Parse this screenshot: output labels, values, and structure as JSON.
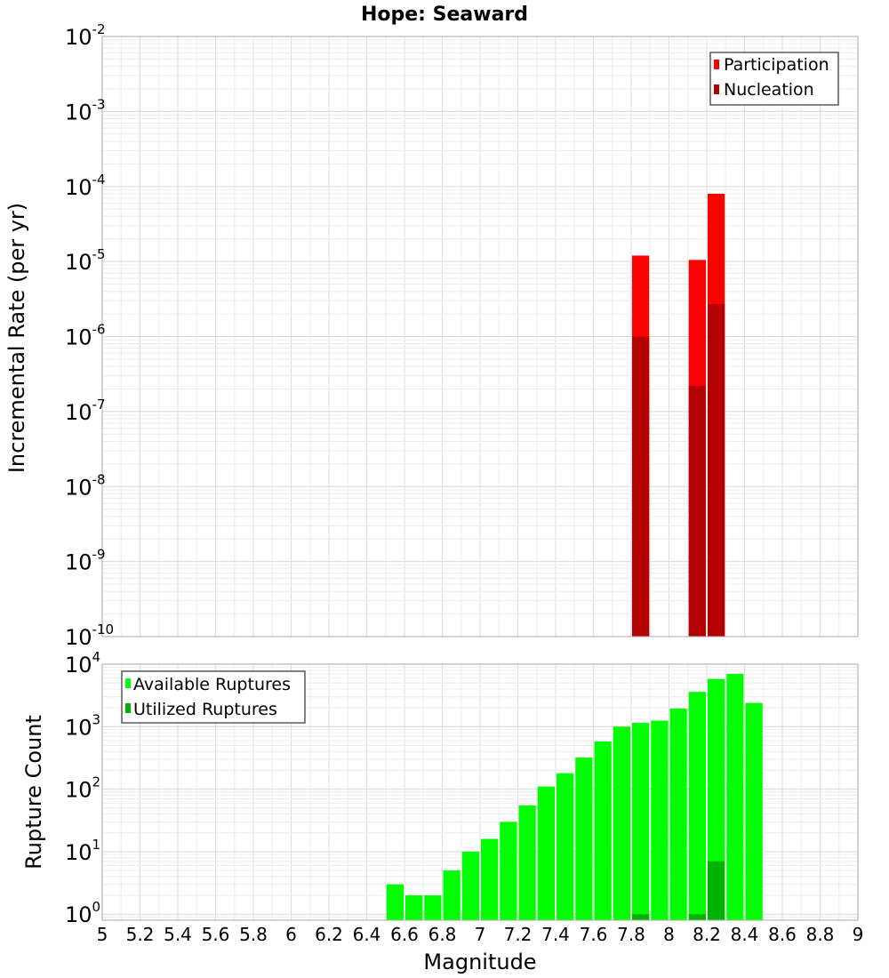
{
  "chart_data": [
    {
      "type": "bar",
      "title": "Hope: Seaward",
      "xlabel": "Magnitude",
      "ylabel": "Incremental Rate (per yr)",
      "yscale": "log",
      "xlim": [
        5,
        9
      ],
      "ylim": [
        1e-10,
        0.01
      ],
      "grid": true,
      "legend_position": "top-right",
      "ytick_labels": [
        {
          "base": "10",
          "exp": "-10",
          "value": 1e-10
        },
        {
          "base": "10",
          "exp": "-9",
          "value": 1e-09
        },
        {
          "base": "10",
          "exp": "-8",
          "value": 1e-08
        },
        {
          "base": "10",
          "exp": "-7",
          "value": 1e-07
        },
        {
          "base": "10",
          "exp": "-6",
          "value": 1e-06
        },
        {
          "base": "10",
          "exp": "-5",
          "value": 1e-05
        },
        {
          "base": "10",
          "exp": "-4",
          "value": 0.0001
        },
        {
          "base": "10",
          "exp": "-3",
          "value": 0.001
        },
        {
          "base": "10",
          "exp": "-2",
          "value": 0.01
        }
      ],
      "series": [
        {
          "name": "Participation",
          "color": "#ff0000",
          "points": [
            {
              "x": 7.85,
              "y": 1.2e-05
            },
            {
              "x": 8.15,
              "y": 1.05e-05
            },
            {
              "x": 8.25,
              "y": 8e-05
            }
          ]
        },
        {
          "name": "Nucleation",
          "color": "#b30000",
          "points": [
            {
              "x": 7.85,
              "y": 1e-06
            },
            {
              "x": 8.15,
              "y": 2.2e-07
            },
            {
              "x": 8.25,
              "y": 2.7e-06
            }
          ]
        }
      ]
    },
    {
      "type": "bar",
      "xlabel": "Magnitude",
      "ylabel": "Rupture Count",
      "yscale": "log",
      "xlim": [
        5,
        9
      ],
      "ylim": [
        0.8,
        10000
      ],
      "grid": true,
      "legend_position": "top-left",
      "xtick_labels": [
        "5",
        "5.2",
        "5.4",
        "5.6",
        "5.8",
        "6",
        "6.2",
        "6.4",
        "6.6",
        "6.8",
        "7",
        "7.2",
        "7.4",
        "7.6",
        "7.8",
        "8",
        "8.2",
        "8.4",
        "8.6",
        "8.8",
        "9"
      ],
      "ytick_labels": [
        {
          "base": "10",
          "exp": "0",
          "value": 1
        },
        {
          "base": "10",
          "exp": "1",
          "value": 10
        },
        {
          "base": "10",
          "exp": "2",
          "value": 100
        },
        {
          "base": "10",
          "exp": "3",
          "value": 1000
        },
        {
          "base": "10",
          "exp": "4",
          "value": 10000
        }
      ],
      "series": [
        {
          "name": "Available Ruptures",
          "color": "#00ff00",
          "points": [
            {
              "x": 6.55,
              "y": 3
            },
            {
              "x": 6.65,
              "y": 2
            },
            {
              "x": 6.75,
              "y": 2
            },
            {
              "x": 6.85,
              "y": 5
            },
            {
              "x": 6.95,
              "y": 10
            },
            {
              "x": 7.05,
              "y": 16
            },
            {
              "x": 7.15,
              "y": 30
            },
            {
              "x": 7.25,
              "y": 55
            },
            {
              "x": 7.35,
              "y": 110
            },
            {
              "x": 7.45,
              "y": 180
            },
            {
              "x": 7.55,
              "y": 320
            },
            {
              "x": 7.65,
              "y": 580
            },
            {
              "x": 7.75,
              "y": 1000
            },
            {
              "x": 7.85,
              "y": 1150
            },
            {
              "x": 7.95,
              "y": 1250
            },
            {
              "x": 8.05,
              "y": 1950
            },
            {
              "x": 8.15,
              "y": 3600
            },
            {
              "x": 8.25,
              "y": 5800
            },
            {
              "x": 8.35,
              "y": 7000
            },
            {
              "x": 8.45,
              "y": 2400
            }
          ]
        },
        {
          "name": "Utilized Ruptures",
          "color": "#00b300",
          "points": [
            {
              "x": 7.85,
              "y": 1
            },
            {
              "x": 8.15,
              "y": 1
            },
            {
              "x": 8.25,
              "y": 7
            }
          ]
        }
      ]
    }
  ]
}
